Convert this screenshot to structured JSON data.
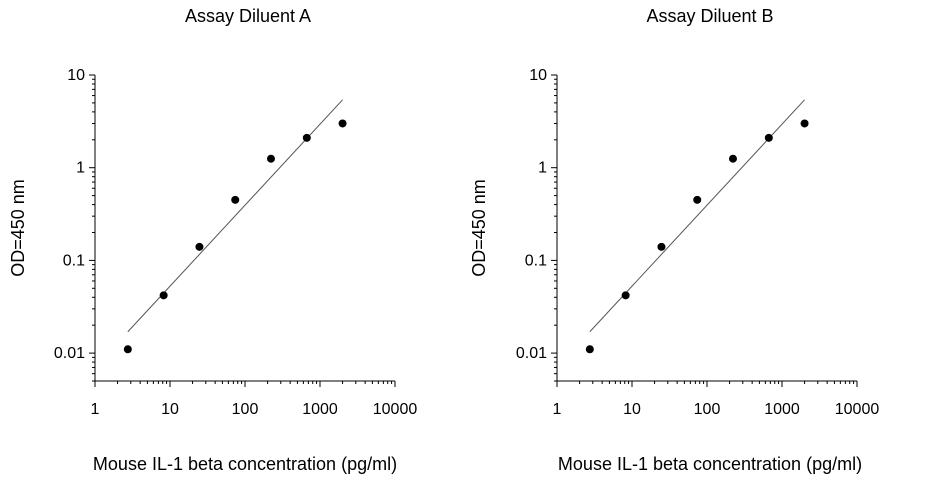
{
  "chart_data": [
    {
      "type": "scatter",
      "title": "Assay Diluent A",
      "xlabel": "Mouse IL-1 beta concentration (pg/ml)",
      "ylabel": "OD=450 nm",
      "x_scale": "log",
      "y_scale": "log",
      "xlim": [
        1,
        10000
      ],
      "ylim": [
        0.005,
        10
      ],
      "x_ticks": [
        1,
        10,
        100,
        1000,
        10000
      ],
      "x_tick_labels": [
        "1",
        "10",
        "100",
        "1000",
        "10000"
      ],
      "y_ticks": [
        0.01,
        0.1,
        1,
        10
      ],
      "y_tick_labels": [
        "0.01",
        "0.1",
        "1",
        "10"
      ],
      "grid": false,
      "legend": "none",
      "marker_color": "#000000",
      "line_color": "#555555",
      "points": [
        {
          "x": 2.74,
          "y": 0.011
        },
        {
          "x": 8.23,
          "y": 0.042
        },
        {
          "x": 24.7,
          "y": 0.14
        },
        {
          "x": 74.1,
          "y": 0.45
        },
        {
          "x": 222,
          "y": 1.25
        },
        {
          "x": 667,
          "y": 2.1
        },
        {
          "x": 2000,
          "y": 3.0
        }
      ],
      "fit_line": [
        {
          "x": 2.74,
          "y": 0.017
        },
        {
          "x": 2000,
          "y": 5.4
        }
      ]
    },
    {
      "type": "scatter",
      "title": "Assay Diluent B",
      "xlabel": "Mouse IL-1 beta concentration (pg/ml)",
      "ylabel": "OD=450 nm",
      "x_scale": "log",
      "y_scale": "log",
      "xlim": [
        1,
        10000
      ],
      "ylim": [
        0.005,
        10
      ],
      "x_ticks": [
        1,
        10,
        100,
        1000,
        10000
      ],
      "x_tick_labels": [
        "1",
        "10",
        "100",
        "1000",
        "10000"
      ],
      "y_ticks": [
        0.01,
        0.1,
        1,
        10
      ],
      "y_tick_labels": [
        "0.01",
        "0.1",
        "1",
        "10"
      ],
      "grid": false,
      "legend": "none",
      "marker_color": "#000000",
      "line_color": "#555555",
      "points": [
        {
          "x": 2.74,
          "y": 0.011
        },
        {
          "x": 8.23,
          "y": 0.042
        },
        {
          "x": 24.7,
          "y": 0.14
        },
        {
          "x": 74.1,
          "y": 0.45
        },
        {
          "x": 222,
          "y": 1.25
        },
        {
          "x": 667,
          "y": 2.1
        },
        {
          "x": 2000,
          "y": 3.0
        }
      ],
      "fit_line": [
        {
          "x": 2.74,
          "y": 0.017
        },
        {
          "x": 2000,
          "y": 5.4
        }
      ]
    }
  ]
}
